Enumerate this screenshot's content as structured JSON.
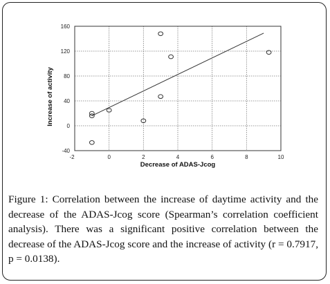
{
  "caption": "Figure 1: Correlation between the increase of daytime activity and the decrease of the ADAS-Jcog score (Spearman’s correlation coefficient analysis). There was a significant positive correlation between the decrease of the ADAS-Jcog score and the increase of activity (r = 0.7917, p = 0.0138).",
  "chart_data": {
    "type": "scatter",
    "xlabel": "Decrease of ADAS-Jcog",
    "ylabel": "Increase of activity",
    "xlim": [
      -2,
      10
    ],
    "ylim": [
      -40,
      160
    ],
    "xticks": [
      -2,
      0,
      2,
      4,
      6,
      8,
      10
    ],
    "yticks": [
      -40,
      0,
      40,
      80,
      120,
      160
    ],
    "xtick_labels": [
      "-2",
      "0",
      "2",
      "4",
      "6",
      "8",
      "10"
    ],
    "ytick_labels": [
      "-40",
      "0",
      "40",
      "80",
      "120",
      "160"
    ],
    "grid": true,
    "points": [
      {
        "x": -1,
        "y": -27
      },
      {
        "x": -1,
        "y": 16
      },
      {
        "x": -1,
        "y": 20
      },
      {
        "x": 0,
        "y": 25
      },
      {
        "x": 2,
        "y": 8
      },
      {
        "x": 3,
        "y": 47
      },
      {
        "x": 3,
        "y": 148
      },
      {
        "x": 3.6,
        "y": 111
      },
      {
        "x": 9.3,
        "y": 118
      }
    ],
    "trendline": {
      "x": [
        -1,
        9
      ],
      "y": [
        16,
        149
      ]
    },
    "colors": {
      "marker": "#333333",
      "line": "#333333",
      "grid": "#777777"
    }
  }
}
